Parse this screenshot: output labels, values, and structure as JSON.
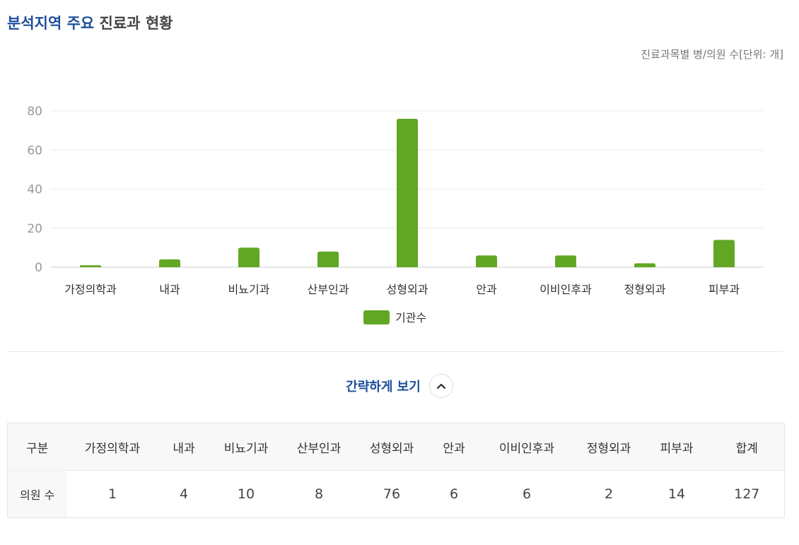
{
  "title": {
    "highlight": "분석지역 주요",
    "rest": "진료과 현황"
  },
  "unit_note": "진료과목별 병/의원 수[단위: 개]",
  "colors": {
    "bar": "#62a724",
    "title_accent": "#1f4e9a"
  },
  "chart_data": {
    "type": "bar",
    "categories": [
      "가정의학과",
      "내과",
      "비뇨기과",
      "산부인과",
      "성형외과",
      "안과",
      "이비인후과",
      "정형외과",
      "피부과"
    ],
    "series": [
      {
        "name": "기관수",
        "values": [
          1,
          4,
          10,
          8,
          76,
          6,
          6,
          2,
          14
        ]
      }
    ],
    "yticks": [
      0,
      20,
      40,
      60,
      80
    ],
    "ylim": [
      0,
      80
    ],
    "grid": true,
    "legend": "bottom-center"
  },
  "toggle": {
    "label": "간략하게 보기",
    "icon": "chevron-up-icon"
  },
  "table": {
    "headers": [
      "구분",
      "가정의학과",
      "내과",
      "비뇨기과",
      "산부인과",
      "성형외과",
      "안과",
      "이비인후과",
      "정형외과",
      "피부과",
      "합계"
    ],
    "row": [
      "의원 수",
      "1",
      "4",
      "10",
      "8",
      "76",
      "6",
      "6",
      "2",
      "14",
      "127"
    ]
  }
}
